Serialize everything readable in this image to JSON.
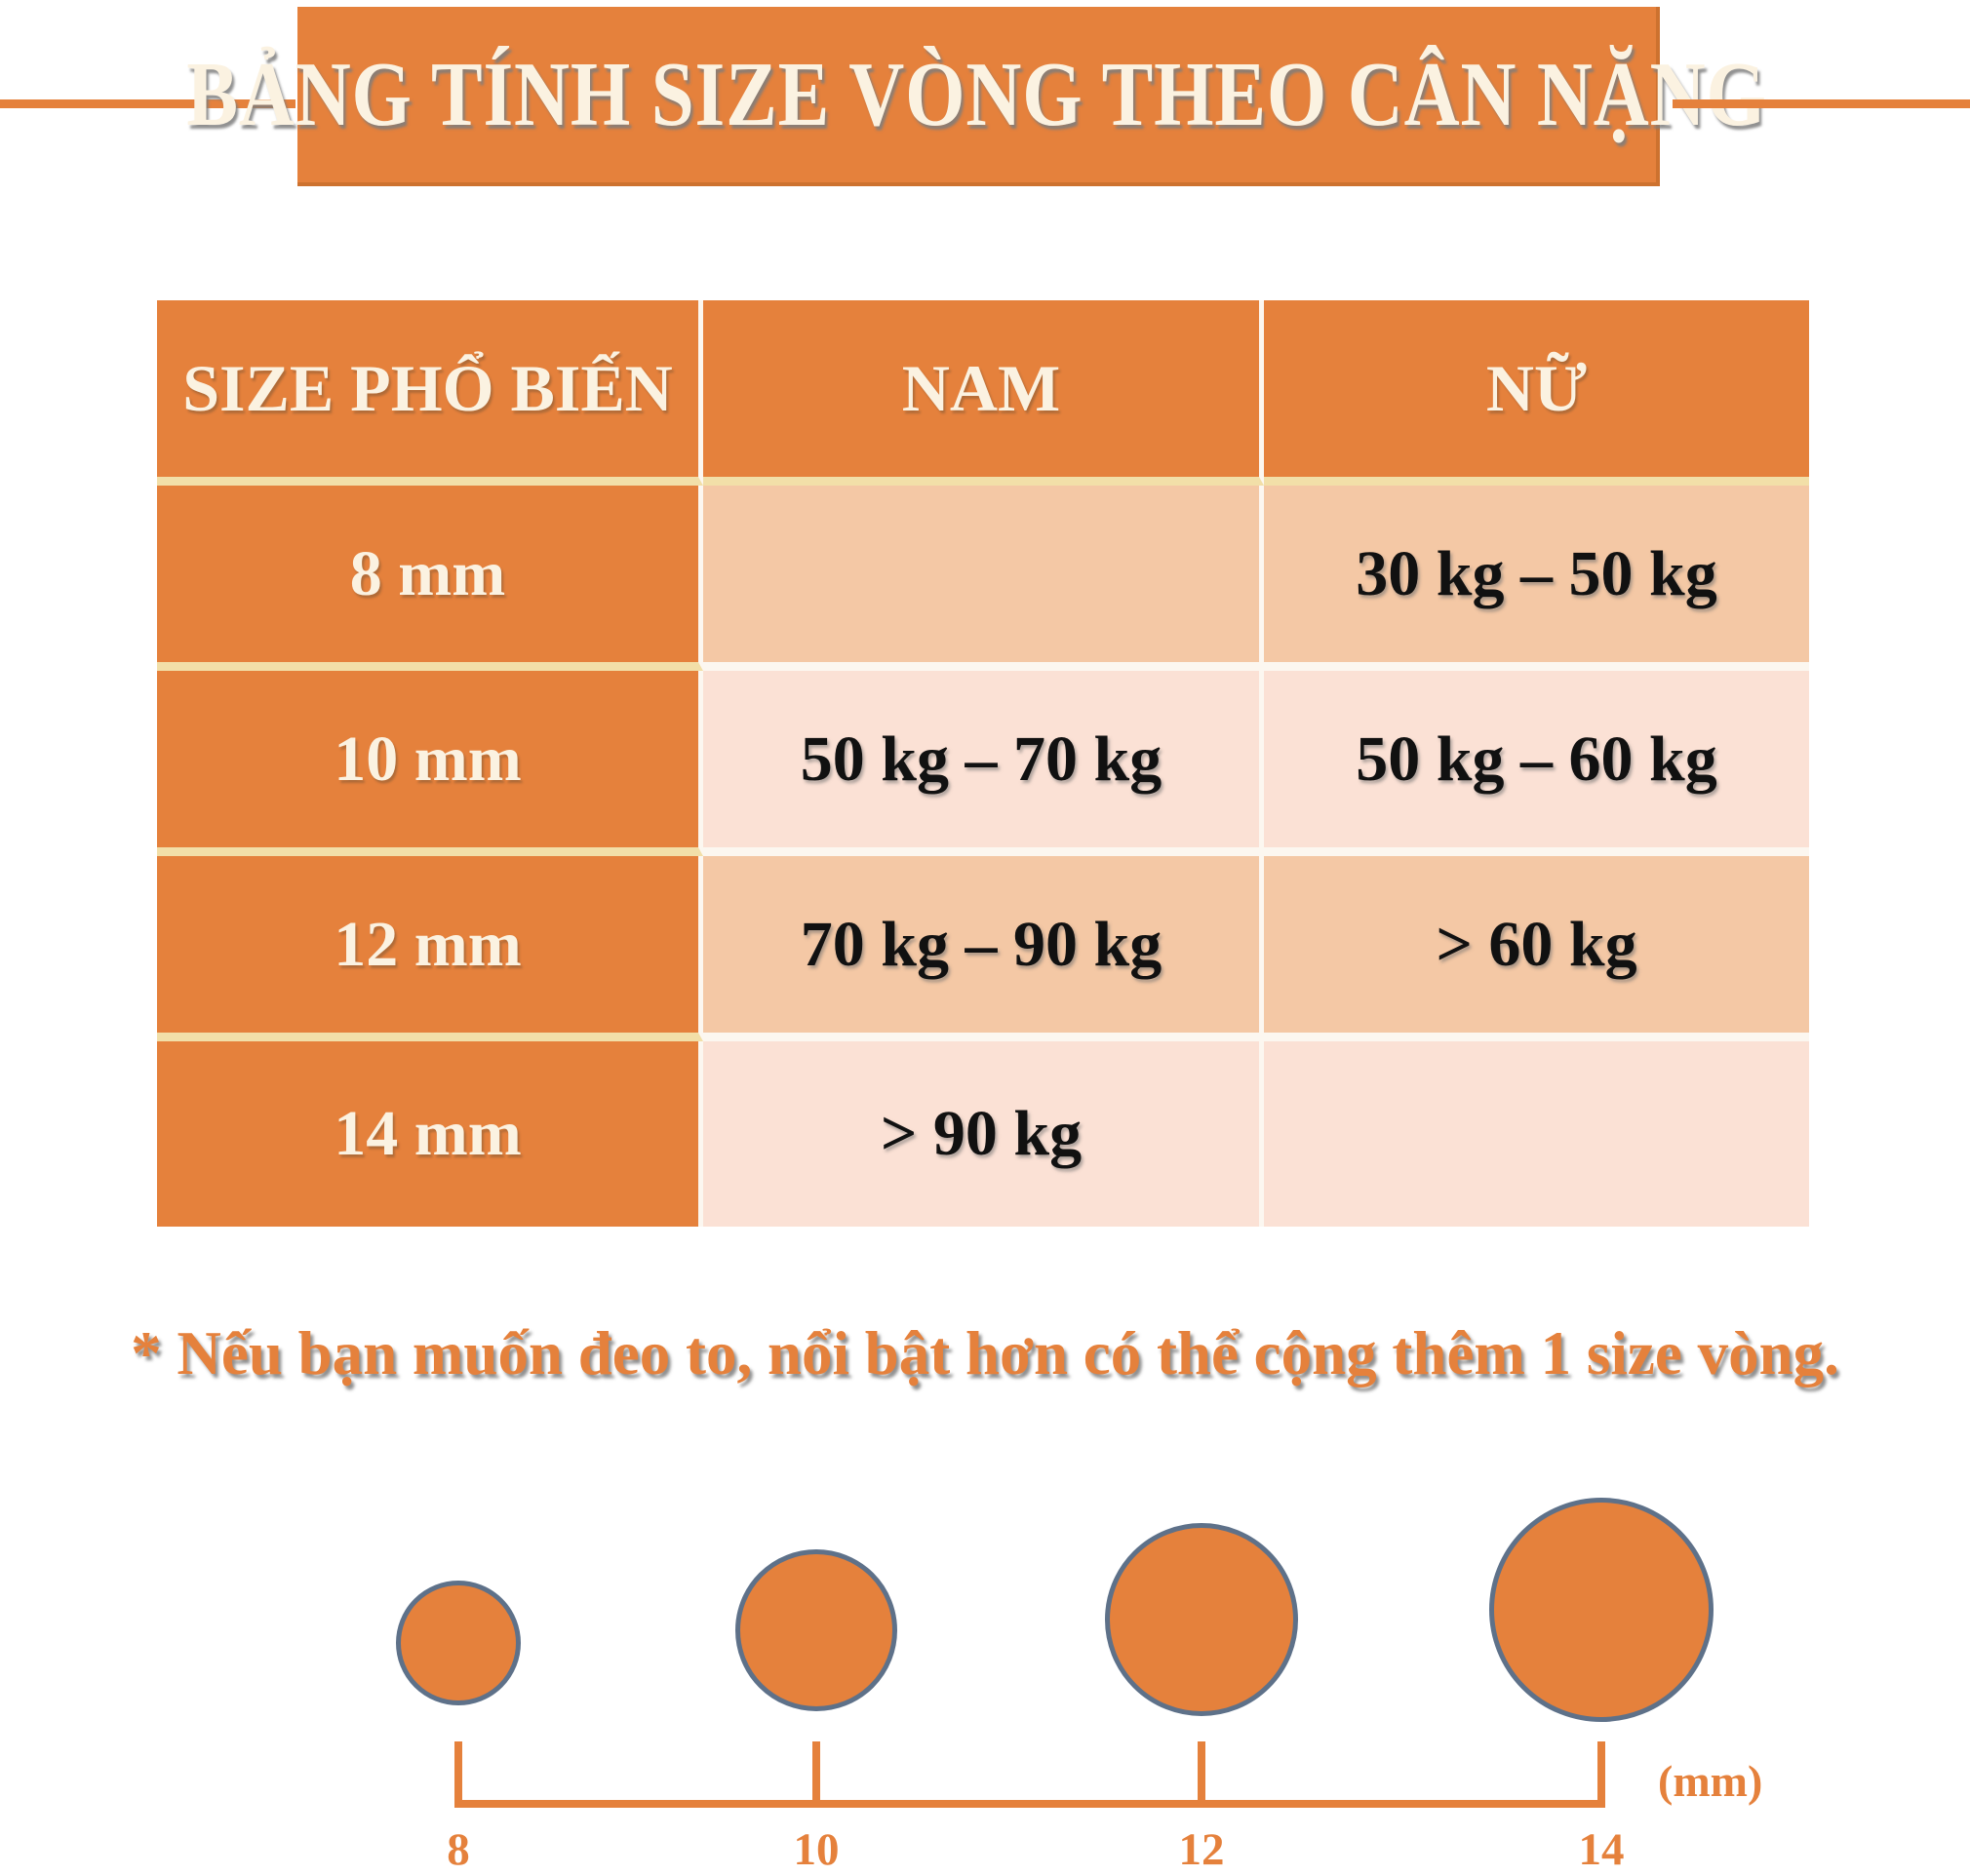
{
  "banner": {
    "title": "BẢNG TÍNH SIZE VÒNG THEO CÂN NẶNG"
  },
  "table": {
    "headers": [
      "SIZE PHỔ BIẾN",
      "NAM",
      "NỮ"
    ],
    "rows": [
      {
        "size": "8 mm",
        "nam": "",
        "nu": "30 kg – 50 kg"
      },
      {
        "size": "10 mm",
        "nam": "50 kg – 70 kg",
        "nu": "50 kg – 60 kg"
      },
      {
        "size": "12 mm",
        "nam": "70 kg – 90 kg",
        "nu": "> 60 kg"
      },
      {
        "size": "14 mm",
        "nam": "> 90 kg",
        "nu": ""
      }
    ]
  },
  "note": "* Nếu bạn muốn đeo to, nổi bật hơn có thể cộng thêm 1 size vòng.",
  "diagram": {
    "unit_label": "(mm)",
    "sizes": [
      {
        "label": "8",
        "diameter_mm": 8
      },
      {
        "label": "10",
        "diameter_mm": 10
      },
      {
        "label": "12",
        "diameter_mm": 12
      },
      {
        "label": "14",
        "diameter_mm": 14
      }
    ]
  },
  "chart_data": {
    "type": "table",
    "title": "BẢNG TÍNH SIZE VÒNG THEO CÂN NẶNG",
    "columns": [
      "SIZE PHỔ BIẾN",
      "NAM",
      "NỮ"
    ],
    "rows": [
      [
        "8 mm",
        "",
        "30 kg – 50 kg"
      ],
      [
        "10 mm",
        "50 kg – 70 kg",
        "50 kg – 60 kg"
      ],
      [
        "12 mm",
        "70 kg – 90 kg",
        "> 60 kg"
      ],
      [
        "14 mm",
        "> 90 kg",
        ""
      ]
    ],
    "footnote": "* Nếu bạn muốn đeo to, nổi bật hơn có thể cộng thêm 1 size vòng.",
    "scale": {
      "unit": "(mm)",
      "ticks": [
        8,
        10,
        12,
        14
      ]
    }
  },
  "colors": {
    "primary_orange": "#E5813C",
    "orange_edge": "#CD722F",
    "row_peach_dark": "#F4C8A5",
    "row_peach_light": "#FBE1D5",
    "cream_separator": "#F2DFA8",
    "white_separator": "#FCF7F0",
    "bead_stroke_blue": "#5E7189",
    "title_cream": "#FBF2E1",
    "text_black": "#111111"
  }
}
